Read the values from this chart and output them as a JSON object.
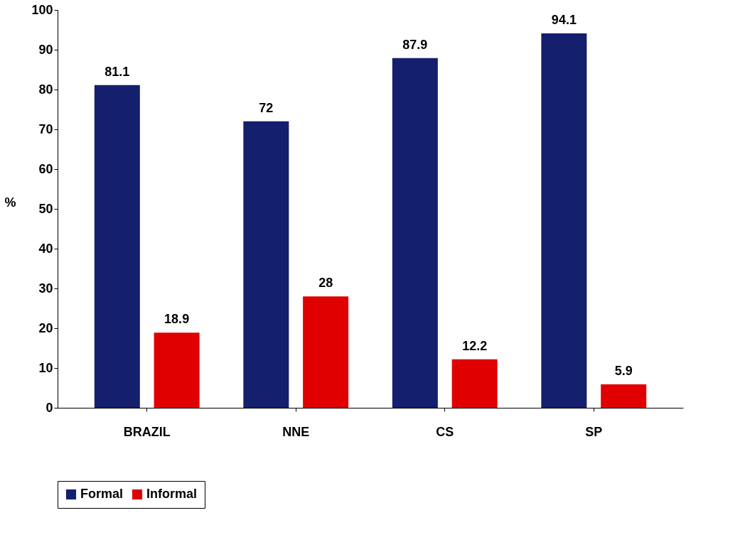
{
  "chart_data": {
    "type": "bar",
    "ylabel": "%",
    "categories": [
      "BRAZIL",
      "NNE",
      "CS",
      "SP"
    ],
    "series": [
      {
        "name": "Formal",
        "color": "#141f6e",
        "values": [
          81.1,
          72,
          87.9,
          94.1
        ]
      },
      {
        "name": "Informal",
        "color": "#e00000",
        "values": [
          18.9,
          28,
          12.2,
          5.9
        ]
      }
    ],
    "ylim": [
      0,
      100
    ],
    "yticks": [
      0,
      10,
      20,
      30,
      40,
      50,
      60,
      70,
      80,
      90,
      100
    ],
    "grid": false,
    "legend": "bottom",
    "data_labels": true
  }
}
